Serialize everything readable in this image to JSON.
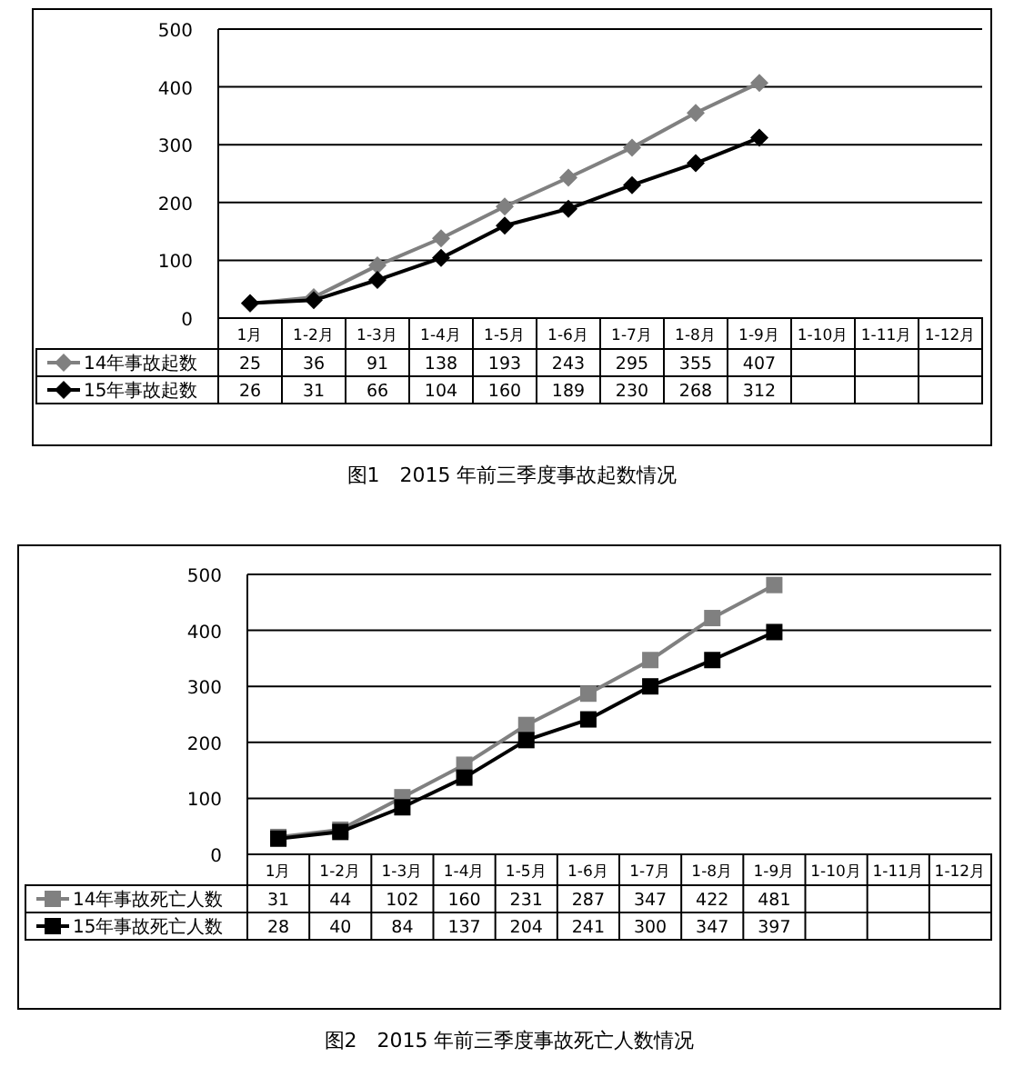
{
  "chart_data": [
    {
      "type": "line",
      "title": "图1　2015 年前三季度事故起数情况",
      "categories": [
        "1月",
        "1-2月",
        "1-3月",
        "1-4月",
        "1-5月",
        "1-6月",
        "1-7月",
        "1-8月",
        "1-9月",
        "1-10月",
        "1-11月",
        "1-12月"
      ],
      "series": [
        {
          "name": "14年事故起数",
          "color": "#808080",
          "values": [
            25,
            36,
            91,
            138,
            193,
            243,
            295,
            355,
            407,
            null,
            null,
            null
          ]
        },
        {
          "name": "15年事故起数",
          "color": "#000000",
          "values": [
            26,
            31,
            66,
            104,
            160,
            189,
            230,
            268,
            312,
            null,
            null,
            null
          ]
        }
      ],
      "ylim": [
        0,
        500
      ],
      "yticks": [
        0,
        100,
        200,
        300,
        400,
        500
      ],
      "grid": "y",
      "marker": "diamond",
      "data_labels": true,
      "legend": "bottom left"
    },
    {
      "type": "line",
      "title": "图2　2015 年前三季度事故死亡人数情况",
      "categories": [
        "1月",
        "1-2月",
        "1-3月",
        "1-4月",
        "1-5月",
        "1-6月",
        "1-7月",
        "1-8月",
        "1-9月",
        "1-10月",
        "1-11月",
        "1-12月"
      ],
      "series": [
        {
          "name": "14年事故死亡人数",
          "color": "#808080",
          "values": [
            31,
            44,
            102,
            160,
            231,
            287,
            347,
            422,
            481,
            null,
            null,
            null
          ]
        },
        {
          "name": "15年事故死亡人数",
          "color": "#000000",
          "values": [
            28,
            40,
            84,
            137,
            204,
            241,
            300,
            347,
            397,
            null,
            null,
            null
          ]
        }
      ],
      "ylim": [
        0,
        500
      ],
      "yticks": [
        0,
        100,
        200,
        300,
        400,
        500
      ],
      "grid": "y",
      "marker": "square",
      "data_labels": true,
      "legend": "bottom left"
    }
  ]
}
